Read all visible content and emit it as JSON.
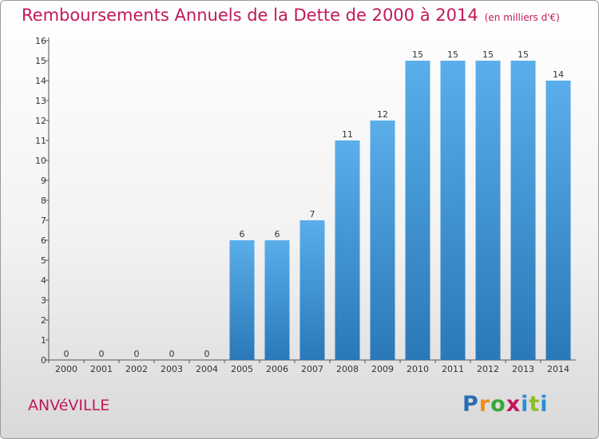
{
  "title": "Remboursements Annuels de la Dette de 2000 à 2014",
  "subtitle": "(en milliers d'€)",
  "town": "ANVéVILLE",
  "logo": "Proxiti",
  "colors": {
    "title": "#c2185b",
    "bar_top": "#5aaeea",
    "bar_bottom": "#2a78b8"
  },
  "chart_data": {
    "type": "bar",
    "title": "Remboursements Annuels de la Dette de 2000 à 2014",
    "subtitle": "(en milliers d'€)",
    "categories": [
      "2000",
      "2001",
      "2002",
      "2003",
      "2004",
      "2005",
      "2006",
      "2007",
      "2008",
      "2009",
      "2010",
      "2011",
      "2012",
      "2013",
      "2014"
    ],
    "values": [
      0,
      0,
      0,
      0,
      0,
      6,
      6,
      7,
      11,
      12,
      15,
      15,
      15,
      15,
      14
    ],
    "ylim": [
      0,
      16
    ],
    "yticks": [
      0,
      1,
      2,
      3,
      4,
      5,
      6,
      7,
      8,
      9,
      10,
      11,
      12,
      13,
      14,
      15,
      16
    ],
    "grid": false,
    "data_labels": true
  }
}
